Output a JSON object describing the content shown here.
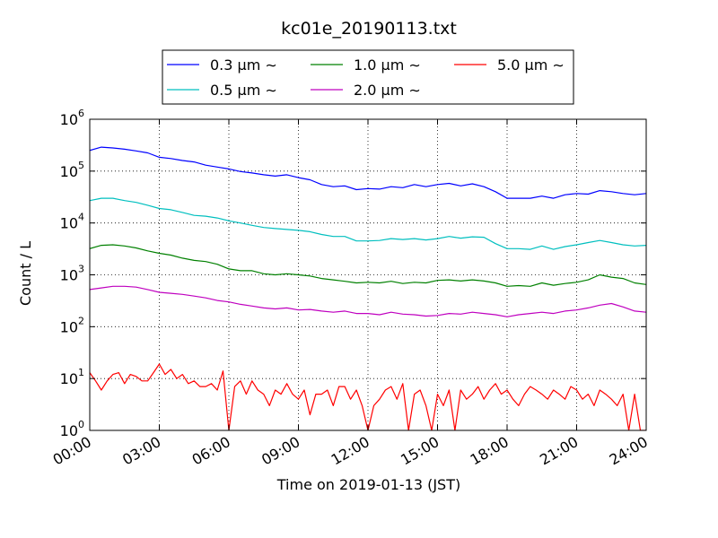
{
  "chart_data": {
    "type": "line",
    "title": "kc01e_20190113.txt",
    "xlabel": "Time on 2019-01-13 (JST)",
    "ylabel": "Count / L",
    "x_ticks": [
      "00:00",
      "03:00",
      "06:00",
      "09:00",
      "12:00",
      "15:00",
      "18:00",
      "21:00",
      "24:00"
    ],
    "x_range_hours": [
      0,
      24
    ],
    "y_scale": "log",
    "y_ticks": [
      {
        "base": "10",
        "exp": "0"
      },
      {
        "base": "10",
        "exp": "1"
      },
      {
        "base": "10",
        "exp": "2"
      },
      {
        "base": "10",
        "exp": "3"
      },
      {
        "base": "10",
        "exp": "4"
      },
      {
        "base": "10",
        "exp": "5"
      },
      {
        "base": "10",
        "exp": "6"
      }
    ],
    "y_range_log10": [
      0,
      6
    ],
    "grid": "dotted",
    "legend_placement": "top",
    "legend_suffix": "∼",
    "series": [
      {
        "name": "0.3 μm",
        "color": "#0000ff",
        "points": [
          [
            0.0,
            250000
          ],
          [
            0.5,
            290000
          ],
          [
            1.0,
            280000
          ],
          [
            1.5,
            265000
          ],
          [
            2.0,
            245000
          ],
          [
            2.5,
            225000
          ],
          [
            3.0,
            185000
          ],
          [
            3.5,
            175000
          ],
          [
            4.0,
            160000
          ],
          [
            4.5,
            150000
          ],
          [
            5.0,
            130000
          ],
          [
            5.5,
            120000
          ],
          [
            6.0,
            110000
          ],
          [
            6.5,
            98000
          ],
          [
            7.0,
            92000
          ],
          [
            7.5,
            85000
          ],
          [
            8.0,
            80000
          ],
          [
            8.5,
            85000
          ],
          [
            9.0,
            75000
          ],
          [
            9.5,
            68000
          ],
          [
            10.0,
            55000
          ],
          [
            10.5,
            50000
          ],
          [
            11.0,
            52000
          ],
          [
            11.5,
            44000
          ],
          [
            12.0,
            46000
          ],
          [
            12.5,
            45000
          ],
          [
            13.0,
            50000
          ],
          [
            13.5,
            48000
          ],
          [
            14.0,
            55000
          ],
          [
            14.5,
            50000
          ],
          [
            15.0,
            55000
          ],
          [
            15.5,
            58000
          ],
          [
            16.0,
            52000
          ],
          [
            16.5,
            57000
          ],
          [
            17.0,
            50000
          ],
          [
            17.5,
            40000
          ],
          [
            18.0,
            30000
          ],
          [
            18.5,
            30000
          ],
          [
            19.0,
            30000
          ],
          [
            19.5,
            33000
          ],
          [
            20.0,
            30000
          ],
          [
            20.5,
            35000
          ],
          [
            21.0,
            37000
          ],
          [
            21.5,
            36000
          ],
          [
            22.0,
            42000
          ],
          [
            22.5,
            40000
          ],
          [
            23.0,
            37000
          ],
          [
            23.5,
            35000
          ],
          [
            24.0,
            37000
          ]
        ]
      },
      {
        "name": "0.5 μm",
        "color": "#00bfbf",
        "points": [
          [
            0.0,
            27000
          ],
          [
            0.5,
            30000
          ],
          [
            1.0,
            30000
          ],
          [
            1.5,
            27000
          ],
          [
            2.0,
            25000
          ],
          [
            2.5,
            22000
          ],
          [
            3.0,
            19000
          ],
          [
            3.5,
            18000
          ],
          [
            4.0,
            16000
          ],
          [
            4.5,
            14000
          ],
          [
            5.0,
            13500
          ],
          [
            5.5,
            12500
          ],
          [
            6.0,
            11000
          ],
          [
            6.5,
            10000
          ],
          [
            7.0,
            9000
          ],
          [
            7.5,
            8200
          ],
          [
            8.0,
            7800
          ],
          [
            8.5,
            7500
          ],
          [
            9.0,
            7200
          ],
          [
            9.5,
            6800
          ],
          [
            10.0,
            6000
          ],
          [
            10.5,
            5500
          ],
          [
            11.0,
            5500
          ],
          [
            11.5,
            4500
          ],
          [
            12.0,
            4500
          ],
          [
            12.5,
            4600
          ],
          [
            13.0,
            5000
          ],
          [
            13.5,
            4800
          ],
          [
            14.0,
            5000
          ],
          [
            14.5,
            4700
          ],
          [
            15.0,
            5000
          ],
          [
            15.5,
            5500
          ],
          [
            16.0,
            5100
          ],
          [
            16.5,
            5400
          ],
          [
            17.0,
            5300
          ],
          [
            17.5,
            4000
          ],
          [
            18.0,
            3200
          ],
          [
            18.5,
            3200
          ],
          [
            19.0,
            3100
          ],
          [
            19.5,
            3600
          ],
          [
            20.0,
            3100
          ],
          [
            20.5,
            3500
          ],
          [
            21.0,
            3800
          ],
          [
            21.5,
            4200
          ],
          [
            22.0,
            4600
          ],
          [
            22.5,
            4200
          ],
          [
            23.0,
            3800
          ],
          [
            23.5,
            3600
          ],
          [
            24.0,
            3700
          ]
        ]
      },
      {
        "name": "1.0 μm",
        "color": "#008000",
        "points": [
          [
            0.0,
            3200
          ],
          [
            0.5,
            3700
          ],
          [
            1.0,
            3800
          ],
          [
            1.5,
            3600
          ],
          [
            2.0,
            3300
          ],
          [
            2.5,
            2900
          ],
          [
            3.0,
            2600
          ],
          [
            3.5,
            2400
          ],
          [
            4.0,
            2100
          ],
          [
            4.5,
            1900
          ],
          [
            5.0,
            1800
          ],
          [
            5.5,
            1600
          ],
          [
            6.0,
            1300
          ],
          [
            6.5,
            1200
          ],
          [
            7.0,
            1200
          ],
          [
            7.5,
            1050
          ],
          [
            8.0,
            1000
          ],
          [
            8.5,
            1050
          ],
          [
            9.0,
            1000
          ],
          [
            9.5,
            950
          ],
          [
            10.0,
            850
          ],
          [
            10.5,
            800
          ],
          [
            11.0,
            750
          ],
          [
            11.5,
            700
          ],
          [
            12.0,
            720
          ],
          [
            12.5,
            700
          ],
          [
            13.0,
            750
          ],
          [
            13.5,
            680
          ],
          [
            14.0,
            720
          ],
          [
            14.5,
            700
          ],
          [
            15.0,
            780
          ],
          [
            15.5,
            800
          ],
          [
            16.0,
            760
          ],
          [
            16.5,
            800
          ],
          [
            17.0,
            760
          ],
          [
            17.5,
            700
          ],
          [
            18.0,
            600
          ],
          [
            18.5,
            620
          ],
          [
            19.0,
            600
          ],
          [
            19.5,
            700
          ],
          [
            20.0,
            630
          ],
          [
            20.5,
            680
          ],
          [
            21.0,
            720
          ],
          [
            21.5,
            800
          ],
          [
            22.0,
            1000
          ],
          [
            22.5,
            900
          ],
          [
            23.0,
            850
          ],
          [
            23.5,
            700
          ],
          [
            24.0,
            650
          ]
        ]
      },
      {
        "name": "2.0 μm",
        "color": "#bf00bf",
        "points": [
          [
            0.0,
            520
          ],
          [
            0.5,
            560
          ],
          [
            1.0,
            600
          ],
          [
            1.5,
            600
          ],
          [
            2.0,
            580
          ],
          [
            2.5,
            520
          ],
          [
            3.0,
            460
          ],
          [
            3.5,
            440
          ],
          [
            4.0,
            420
          ],
          [
            4.5,
            390
          ],
          [
            5.0,
            360
          ],
          [
            5.5,
            320
          ],
          [
            6.0,
            300
          ],
          [
            6.5,
            270
          ],
          [
            7.0,
            250
          ],
          [
            7.5,
            230
          ],
          [
            8.0,
            220
          ],
          [
            8.5,
            230
          ],
          [
            9.0,
            210
          ],
          [
            9.5,
            215
          ],
          [
            10.0,
            200
          ],
          [
            10.5,
            190
          ],
          [
            11.0,
            200
          ],
          [
            11.5,
            180
          ],
          [
            12.0,
            180
          ],
          [
            12.5,
            170
          ],
          [
            13.0,
            190
          ],
          [
            13.5,
            175
          ],
          [
            14.0,
            170
          ],
          [
            14.5,
            160
          ],
          [
            15.0,
            165
          ],
          [
            15.5,
            180
          ],
          [
            16.0,
            175
          ],
          [
            16.5,
            190
          ],
          [
            17.0,
            180
          ],
          [
            17.5,
            170
          ],
          [
            18.0,
            155
          ],
          [
            18.5,
            170
          ],
          [
            19.0,
            180
          ],
          [
            19.5,
            190
          ],
          [
            20.0,
            180
          ],
          [
            20.5,
            200
          ],
          [
            21.0,
            210
          ],
          [
            21.5,
            230
          ],
          [
            22.0,
            260
          ],
          [
            22.5,
            280
          ],
          [
            23.0,
            240
          ],
          [
            23.5,
            200
          ],
          [
            24.0,
            190
          ]
        ]
      },
      {
        "name": "5.0 μm",
        "color": "#ff0000",
        "points": [
          [
            0.0,
            13
          ],
          [
            0.25,
            9
          ],
          [
            0.5,
            6
          ],
          [
            0.75,
            9
          ],
          [
            1.0,
            12
          ],
          [
            1.25,
            13
          ],
          [
            1.5,
            8
          ],
          [
            1.75,
            12
          ],
          [
            2.0,
            11
          ],
          [
            2.25,
            9
          ],
          [
            2.5,
            9
          ],
          [
            2.75,
            13
          ],
          [
            3.0,
            19
          ],
          [
            3.25,
            12
          ],
          [
            3.5,
            15
          ],
          [
            3.75,
            10
          ],
          [
            4.0,
            12
          ],
          [
            4.25,
            8
          ],
          [
            4.5,
            9
          ],
          [
            4.75,
            7
          ],
          [
            5.0,
            7
          ],
          [
            5.25,
            8
          ],
          [
            5.5,
            6
          ],
          [
            5.75,
            14
          ],
          [
            6.0,
            1
          ],
          [
            6.25,
            7
          ],
          [
            6.5,
            9
          ],
          [
            6.75,
            5
          ],
          [
            7.0,
            9
          ],
          [
            7.25,
            6
          ],
          [
            7.5,
            5
          ],
          [
            7.75,
            3
          ],
          [
            8.0,
            6
          ],
          [
            8.25,
            5
          ],
          [
            8.5,
            8
          ],
          [
            8.75,
            5
          ],
          [
            9.0,
            4
          ],
          [
            9.25,
            6
          ],
          [
            9.5,
            2
          ],
          [
            9.75,
            5
          ],
          [
            10.0,
            5
          ],
          [
            10.25,
            6
          ],
          [
            10.5,
            3
          ],
          [
            10.75,
            7
          ],
          [
            11.0,
            7
          ],
          [
            11.25,
            4
          ],
          [
            11.5,
            6
          ],
          [
            11.75,
            3
          ],
          [
            12.0,
            1
          ],
          [
            12.25,
            3
          ],
          [
            12.5,
            4
          ],
          [
            12.75,
            6
          ],
          [
            13.0,
            7
          ],
          [
            13.25,
            4
          ],
          [
            13.5,
            8
          ],
          [
            13.75,
            1
          ],
          [
            14.0,
            5
          ],
          [
            14.25,
            6
          ],
          [
            14.5,
            3
          ],
          [
            14.75,
            1
          ],
          [
            15.0,
            5
          ],
          [
            15.25,
            3
          ],
          [
            15.5,
            6
          ],
          [
            15.75,
            1
          ],
          [
            16.0,
            6
          ],
          [
            16.25,
            4
          ],
          [
            16.5,
            5
          ],
          [
            16.75,
            7
          ],
          [
            17.0,
            4
          ],
          [
            17.25,
            6
          ],
          [
            17.5,
            8
          ],
          [
            17.75,
            5
          ],
          [
            18.0,
            6
          ],
          [
            18.25,
            4
          ],
          [
            18.5,
            3
          ],
          [
            18.75,
            5
          ],
          [
            19.0,
            7
          ],
          [
            19.25,
            6
          ],
          [
            19.5,
            5
          ],
          [
            19.75,
            4
          ],
          [
            20.0,
            6
          ],
          [
            20.25,
            5
          ],
          [
            20.5,
            4
          ],
          [
            20.75,
            7
          ],
          [
            21.0,
            6
          ],
          [
            21.25,
            4
          ],
          [
            21.5,
            5
          ],
          [
            21.75,
            3
          ],
          [
            22.0,
            6
          ],
          [
            22.25,
            5
          ],
          [
            22.5,
            4
          ],
          [
            22.75,
            3
          ],
          [
            23.0,
            5
          ],
          [
            23.25,
            1
          ],
          [
            23.5,
            5
          ],
          [
            23.75,
            1
          ],
          [
            24.0,
            1
          ]
        ]
      }
    ]
  }
}
